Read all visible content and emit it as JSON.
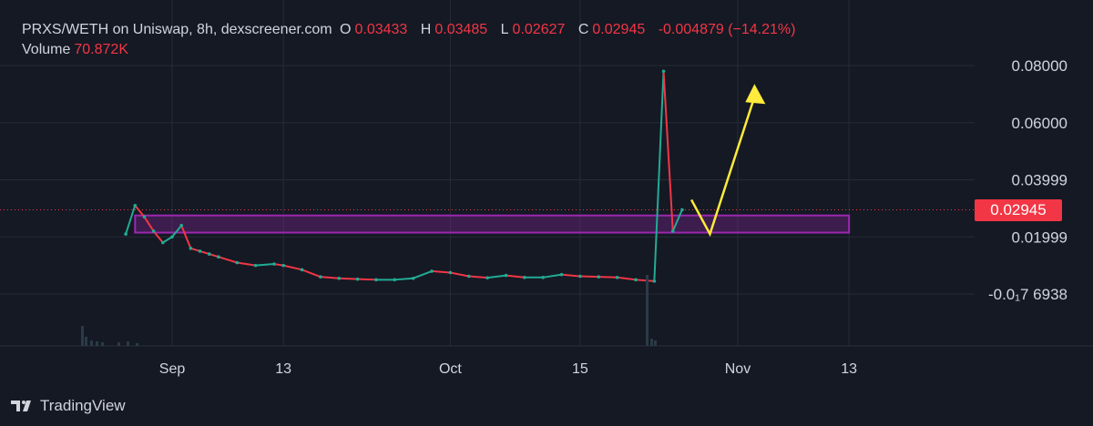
{
  "header": {
    "pair": "PRXS/WETH on Uniswap, 8h, dexscreener.com",
    "open_label": "O",
    "open": "0.03433",
    "high_label": "H",
    "high": "0.03485",
    "low_label": "L",
    "low": "0.02627",
    "close_label": "C",
    "close": "0.02945",
    "change": "-0.004879 (−14.21%)"
  },
  "volume": {
    "label": "Volume",
    "value": "70.872K"
  },
  "last_price_tag": "0.02945",
  "brand": "TradingView",
  "colors": {
    "background": "#151924",
    "up": "#22ab94",
    "down": "#f23645",
    "zone": "#9c27b0",
    "arrow": "#ffeb3b",
    "grid": "#262b36"
  },
  "chart_data": {
    "type": "line",
    "title": "",
    "xlabel": "",
    "ylabel": "",
    "x_ticks": [
      "Sep",
      "13",
      "Oct",
      "15",
      "Nov",
      "13"
    ],
    "y_ticks": [
      "0.08000",
      "0.06000",
      "0.03999",
      "0.01999",
      "-0.0₁7 6938"
    ],
    "ylim": [
      -0.002,
      0.085
    ],
    "grid": true,
    "series": [
      {
        "x": [
          "Aug 27",
          "Aug 28",
          "Aug 29",
          "Aug 30",
          "Aug 31",
          "Sep 1",
          "Sep 2",
          "Sep 3",
          "Sep 4",
          "Sep 5",
          "Sep 6",
          "Sep 8",
          "Sep 10",
          "Sep 12",
          "Sep 13",
          "Sep 15",
          "Sep 17",
          "Sep 19",
          "Sep 21",
          "Sep 23",
          "Sep 25",
          "Sep 27",
          "Sep 29",
          "Oct 1",
          "Oct 3",
          "Oct 5",
          "Oct 7",
          "Oct 9",
          "Oct 11",
          "Oct 13",
          "Oct 15",
          "Oct 17",
          "Oct 19",
          "Oct 21",
          "Oct 23",
          "Oct 24",
          "Oct 25",
          "Oct 26"
        ],
        "values": [
          0.021,
          0.031,
          0.027,
          0.022,
          0.018,
          0.02,
          0.024,
          0.016,
          0.015,
          0.014,
          0.013,
          0.011,
          0.01,
          0.0105,
          0.01,
          0.0085,
          0.006,
          0.0055,
          0.0052,
          0.005,
          0.005,
          0.0055,
          0.008,
          0.0075,
          0.0062,
          0.0057,
          0.0065,
          0.0058,
          0.0058,
          0.0068,
          0.0062,
          0.006,
          0.0058,
          0.005,
          0.0045,
          0.078,
          0.022,
          0.0295
        ]
      }
    ],
    "annotations": [
      {
        "type": "zone",
        "from": "Aug 28",
        "to": "Nov 13",
        "y_low": 0.0215,
        "y_high": 0.0275
      },
      {
        "type": "arrow",
        "points": [
          [
            "Oct 27",
            0.033
          ],
          [
            "Oct 29",
            0.021
          ],
          [
            "Nov 3",
            0.071
          ]
        ]
      }
    ]
  }
}
